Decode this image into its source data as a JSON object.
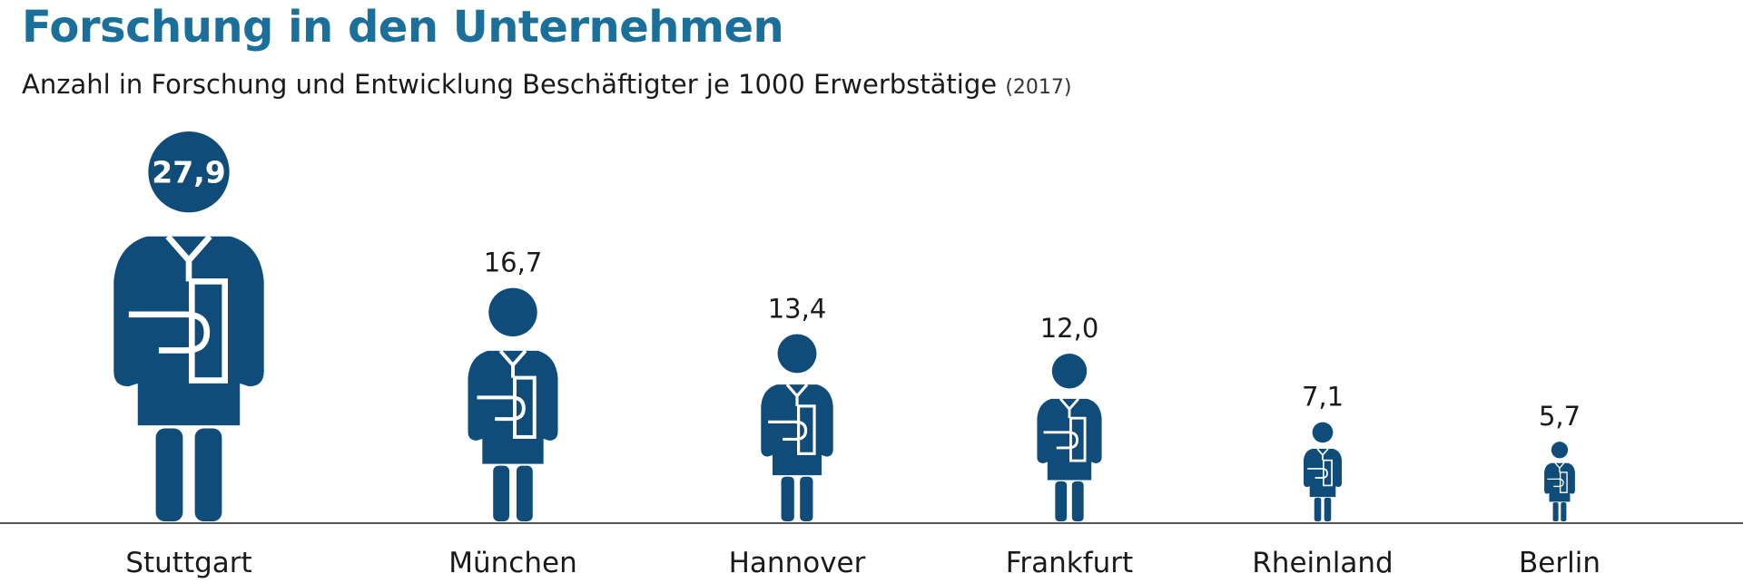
{
  "title": "Forschung in den Unternehmen",
  "subtitle": "Anzahl in Forschung und Entwicklung Beschäftigter je 1000 Erwerbstätige",
  "subtitle_year": "(2017)",
  "colors": {
    "figure": "#0f4c7a",
    "title": "#1a6f9b",
    "text": "#1a1a1a",
    "highlight_label": "#ffffff",
    "baseline": "#555555"
  },
  "icon": "researcher-with-clipboard-icon",
  "chart_data": {
    "type": "bar",
    "mark": "pictogram",
    "categories": [
      "Stuttgart",
      "München",
      "Hannover",
      "Frankfurt",
      "Rheinland",
      "Berlin"
    ],
    "values": [
      27.9,
      16.7,
      13.4,
      12.0,
      7.1,
      5.7
    ],
    "value_labels": [
      "27,9",
      "16,7",
      "13,4",
      "12,0",
      "7,1",
      "5,7"
    ],
    "highlighted_category": "Stuttgart",
    "grid": false,
    "legend": "none"
  }
}
